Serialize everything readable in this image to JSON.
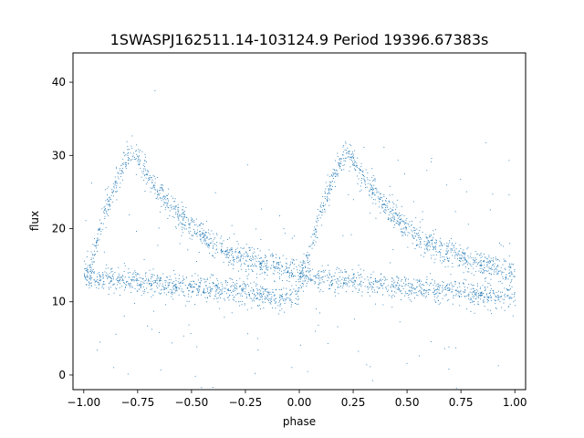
{
  "chart_data": {
    "type": "scatter",
    "title": "1SWASPJ162511.14-103124.9 Period 19396.67383s",
    "xlabel": "phase",
    "ylabel": "flux",
    "xlim": [
      -1.05,
      1.05
    ],
    "ylim": [
      -2,
      44
    ],
    "xticks": [
      -1.0,
      -0.75,
      -0.5,
      -0.25,
      0.0,
      0.25,
      0.5,
      0.75,
      1.0
    ],
    "xtick_labels": [
      "−1.00",
      "−0.75",
      "−0.50",
      "−0.25",
      "0.00",
      "0.25",
      "0.50",
      "0.75",
      "1.00"
    ],
    "yticks": [
      0,
      10,
      20,
      30,
      40
    ],
    "ytick_labels": [
      "0",
      "10",
      "20",
      "30",
      "40"
    ],
    "grid": false,
    "marker_color": "#1f77b4",
    "phase_range": [
      -1.0,
      1.0
    ],
    "series_shape": [
      {
        "phase": 0.0,
        "flux": 13.6
      },
      {
        "phase": 0.03,
        "flux": 15.0
      },
      {
        "phase": 0.06,
        "flux": 18.5
      },
      {
        "phase": 0.1,
        "flux": 22.5
      },
      {
        "phase": 0.15,
        "flux": 26.5
      },
      {
        "phase": 0.2,
        "flux": 29.8
      },
      {
        "phase": 0.22,
        "flux": 30.5
      },
      {
        "phase": 0.25,
        "flux": 29.5
      },
      {
        "phase": 0.3,
        "flux": 27.0
      },
      {
        "phase": 0.4,
        "flux": 23.0
      },
      {
        "phase": 0.5,
        "flux": 20.0
      },
      {
        "phase": 0.6,
        "flux": 18.0
      },
      {
        "phase": 0.7,
        "flux": 16.5
      },
      {
        "phase": 0.8,
        "flux": 15.5
      },
      {
        "phase": 0.9,
        "flux": 14.8
      },
      {
        "phase": 1.0,
        "flux": 14.0
      }
    ],
    "lower_band_shape": [
      {
        "phase": 0.0,
        "flux": 13.5
      },
      {
        "phase": 0.2,
        "flux": 13.0
      },
      {
        "phase": 0.5,
        "flux": 12.0
      },
      {
        "phase": 0.75,
        "flux": 11.5
      },
      {
        "phase": 0.9,
        "flux": 10.5
      },
      {
        "phase": 1.0,
        "flux": 11.0
      }
    ]
  }
}
